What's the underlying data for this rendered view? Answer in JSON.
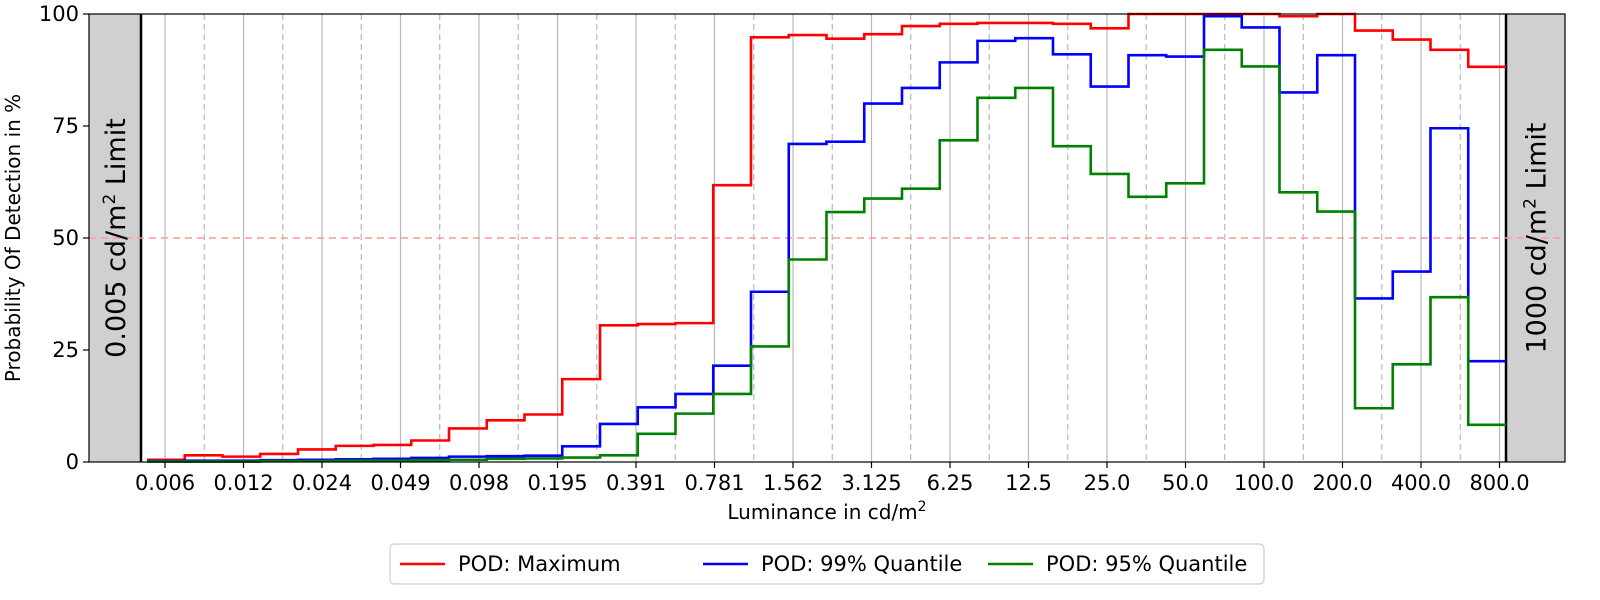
{
  "chart_data": {
    "type": "line",
    "step": true,
    "xlabel": "Luminance in cd/m",
    "xlabel_sup": "2",
    "ylabel": "Probability Of Detection in %",
    "ylim": [
      0,
      100
    ],
    "y_ticks": [
      "0",
      "25",
      "50",
      "75",
      "100"
    ],
    "x_scale": "log2",
    "x_tick_labels": [
      "0.006",
      "0.012",
      "0.024",
      "0.049",
      "0.098",
      "0.195",
      "0.391",
      "0.781",
      "1.562",
      "3.125",
      "6.25",
      "12.5",
      "25.0",
      "50.0",
      "100.0",
      "200.0",
      "400.0",
      "800.0"
    ],
    "threshold_line": {
      "y": 50,
      "color": "#ff9999",
      "style": "dashed"
    },
    "limits": [
      {
        "label": "0.005 cd/m",
        "sup": "2",
        "tail": " Limit",
        "side": "left"
      },
      {
        "label": "1000 cd/m",
        "sup": "2",
        "tail": " Limit",
        "side": "right"
      }
    ],
    "bin_count": 36,
    "series": [
      {
        "name": "POD: Maximum",
        "color": "#ff0000",
        "values": [
          0.5,
          1.5,
          1.2,
          1.8,
          2.8,
          3.6,
          3.8,
          4.8,
          7.5,
          9.3,
          10.6,
          18.5,
          30.5,
          30.8,
          31.0,
          61.8,
          94.8,
          95.3,
          94.5,
          95.5,
          97.3,
          97.8,
          98.0,
          98.0,
          97.8,
          96.8,
          100,
          100,
          100,
          100,
          99.5,
          100,
          96.3,
          94.3,
          92.0,
          88.2
        ]
      },
      {
        "name": "POD: 99% Quantile",
        "color": "#0000ff",
        "values": [
          0.2,
          0.3,
          0.3,
          0.4,
          0.5,
          0.6,
          0.7,
          0.9,
          1.2,
          1.3,
          1.4,
          3.5,
          8.5,
          12.2,
          15.2,
          21.5,
          38.0,
          71.0,
          71.5,
          80.0,
          83.5,
          89.2,
          94.0,
          94.6,
          91.0,
          83.8,
          90.8,
          90.5,
          99.5,
          97.0,
          82.5,
          90.8,
          36.5,
          42.5,
          74.5,
          22.5
        ]
      },
      {
        "name": "POD: 95% Quantile",
        "color": "#008000",
        "values": [
          0.1,
          0.1,
          0.1,
          0.2,
          0.2,
          0.3,
          0.3,
          0.4,
          0.5,
          0.7,
          0.8,
          1.0,
          1.5,
          6.3,
          10.8,
          15.2,
          25.8,
          45.2,
          55.8,
          58.8,
          61.0,
          71.8,
          81.3,
          83.5,
          70.5,
          64.3,
          59.2,
          62.2,
          92.0,
          88.3,
          60.2,
          55.9,
          12.0,
          21.8,
          36.8,
          8.3
        ]
      }
    ],
    "grid": true,
    "legend_position": "bottom"
  }
}
